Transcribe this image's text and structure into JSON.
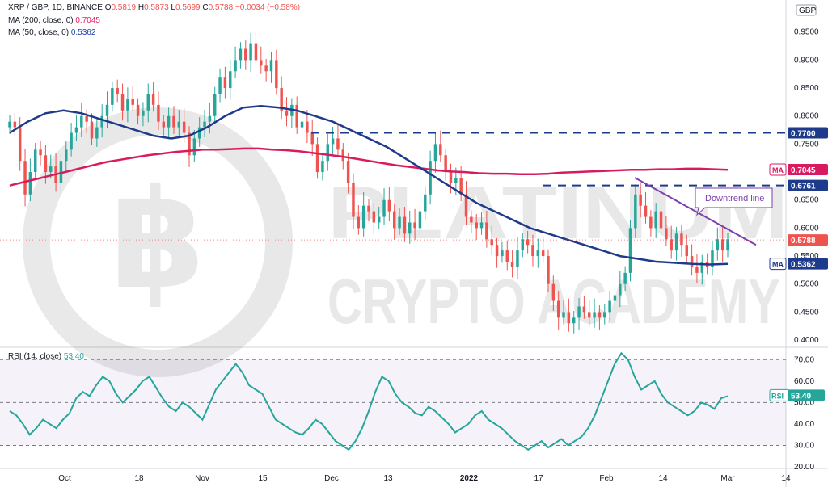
{
  "header": {
    "symbol": "XRP / GBP, 1D, BINANCE",
    "ohlc": [
      {
        "k": "O",
        "v": "0.5819"
      },
      {
        "k": "H",
        "v": "0.5873"
      },
      {
        "k": "L",
        "v": "0.5699"
      },
      {
        "k": "C",
        "v": "0.5788"
      }
    ],
    "change": "−0.0034 (−0.58%)",
    "ma200_label": "MA (200, close, 0)",
    "ma200_value": "0.7045",
    "ma50_label": "MA (50, close, 0)",
    "ma50_value": "0.5362",
    "rsi_label": "RSI (14, close)",
    "rsi_value": "53.40",
    "currency": "GBP"
  },
  "watermark": {
    "line1": "PLATINUM",
    "line2": "CRYPTO ACADEMY"
  },
  "colors": {
    "up": "#26a69a",
    "down": "#ef5350",
    "ma200": "#d81b60",
    "ma50": "#1e3a8a",
    "rsi": "#26a69a",
    "trend": "#7b3fb0",
    "hline": "#1e3a8a"
  },
  "annotations": {
    "downtrend_label": "Downtrend line",
    "levels": [
      {
        "value": 0.77,
        "label": "0.7700",
        "color": "#1e3a8a"
      },
      {
        "value": 0.6761,
        "label": "0.6761",
        "color": "#1e3a8a"
      }
    ],
    "tags": [
      {
        "value": 0.7045,
        "prefix": "MA",
        "label": "0.7045",
        "color": "#d81b60"
      },
      {
        "value": 0.5788,
        "prefix": "",
        "label": "0.5788",
        "color": "#ef5350"
      },
      {
        "value": 0.5362,
        "prefix": "MA",
        "label": "0.5362",
        "color": "#1e3a8a"
      }
    ],
    "rsi_tag": {
      "prefix": "RSI",
      "label": "53.40"
    }
  },
  "chart_data": {
    "type": "candlestick",
    "x_labels": [
      {
        "index": 0,
        "label": "Oct"
      },
      {
        "index": 1,
        "label": "18"
      },
      {
        "index": 2,
        "label": "Nov"
      },
      {
        "index": 3,
        "label": "15"
      },
      {
        "index": 4,
        "label": "Dec"
      },
      {
        "index": 5,
        "label": "13"
      },
      {
        "index": 6,
        "label": "2022"
      },
      {
        "index": 7,
        "label": "17"
      },
      {
        "index": 8,
        "label": "Feb"
      },
      {
        "index": 9,
        "label": "14"
      },
      {
        "index": 10,
        "label": "Mar"
      },
      {
        "index": 11,
        "label": "14"
      }
    ],
    "price_axis": {
      "min": 0.39,
      "max": 0.99,
      "ticks": [
        "0.9500",
        "0.9000",
        "0.8500",
        "0.8000",
        "0.7500",
        "0.6500",
        "0.6000",
        "0.5500",
        "0.5000",
        "0.4500",
        "0.4000"
      ]
    },
    "rsi_axis": {
      "min": 20,
      "max": 75,
      "ticks": [
        "70.00",
        "60.00",
        "50.00",
        "40.00",
        "30.00",
        "20.00"
      ],
      "upper": 70,
      "lower": 30
    },
    "close": [
      0.79,
      0.78,
      0.72,
      0.66,
      0.7,
      0.74,
      0.73,
      0.7,
      0.71,
      0.68,
      0.72,
      0.74,
      0.77,
      0.78,
      0.8,
      0.79,
      0.76,
      0.78,
      0.8,
      0.82,
      0.85,
      0.84,
      0.81,
      0.83,
      0.82,
      0.8,
      0.81,
      0.84,
      0.82,
      0.79,
      0.78,
      0.8,
      0.78,
      0.79,
      0.77,
      0.73,
      0.76,
      0.78,
      0.79,
      0.8,
      0.84,
      0.87,
      0.85,
      0.88,
      0.9,
      0.92,
      0.9,
      0.93,
      0.9,
      0.89,
      0.88,
      0.9,
      0.85,
      0.81,
      0.8,
      0.82,
      0.78,
      0.79,
      0.77,
      0.75,
      0.7,
      0.72,
      0.75,
      0.76,
      0.74,
      0.72,
      0.68,
      0.62,
      0.6,
      0.64,
      0.63,
      0.61,
      0.62,
      0.65,
      0.63,
      0.6,
      0.62,
      0.59,
      0.61,
      0.6,
      0.63,
      0.66,
      0.72,
      0.75,
      0.73,
      0.7,
      0.68,
      0.69,
      0.66,
      0.62,
      0.61,
      0.6,
      0.61,
      0.58,
      0.57,
      0.55,
      0.56,
      0.54,
      0.53,
      0.56,
      0.58,
      0.57,
      0.55,
      0.56,
      0.55,
      0.5,
      0.47,
      0.44,
      0.45,
      0.43,
      0.44,
      0.46,
      0.45,
      0.44,
      0.45,
      0.44,
      0.45,
      0.47,
      0.48,
      0.5,
      0.52,
      0.6,
      0.66,
      0.64,
      0.62,
      0.6,
      0.63,
      0.6,
      0.58,
      0.56,
      0.59,
      0.57,
      0.55,
      0.53,
      0.52,
      0.54,
      0.53,
      0.56,
      0.58,
      0.56,
      0.58
    ],
    "ma200": [
      0.676,
      0.682,
      0.688,
      0.694,
      0.7,
      0.706,
      0.712,
      0.718,
      0.722,
      0.726,
      0.73,
      0.733,
      0.736,
      0.738,
      0.74,
      0.74,
      0.741,
      0.742,
      0.742,
      0.74,
      0.739,
      0.737,
      0.734,
      0.731,
      0.728,
      0.724,
      0.72,
      0.716,
      0.712,
      0.709,
      0.706,
      0.703,
      0.701,
      0.7,
      0.698,
      0.697,
      0.697,
      0.696,
      0.696,
      0.697,
      0.699,
      0.7,
      0.701,
      0.702,
      0.703,
      0.704,
      0.704,
      0.705,
      0.705,
      0.706,
      0.706,
      0.705,
      0.704
    ],
    "ma50": [
      0.77,
      0.79,
      0.805,
      0.81,
      0.805,
      0.795,
      0.785,
      0.775,
      0.765,
      0.76,
      0.765,
      0.78,
      0.8,
      0.815,
      0.818,
      0.815,
      0.81,
      0.8,
      0.79,
      0.775,
      0.76,
      0.745,
      0.725,
      0.705,
      0.685,
      0.665,
      0.645,
      0.63,
      0.615,
      0.6,
      0.59,
      0.58,
      0.57,
      0.56,
      0.55,
      0.545,
      0.54,
      0.538,
      0.536,
      0.535,
      0.536
    ],
    "rsi": [
      46,
      44,
      40,
      35,
      38,
      42,
      40,
      38,
      42,
      45,
      52,
      55,
      53,
      58,
      62,
      60,
      54,
      50,
      53,
      56,
      60,
      62,
      57,
      52,
      48,
      46,
      50,
      48,
      45,
      42,
      49,
      56,
      60,
      64,
      68,
      64,
      58,
      56,
      54,
      48,
      42,
      40,
      38,
      36,
      35,
      38,
      42,
      40,
      36,
      32,
      30,
      28,
      32,
      38,
      46,
      55,
      62,
      60,
      54,
      50,
      48,
      45,
      44,
      48,
      46,
      43,
      40,
      36,
      38,
      40,
      44,
      46,
      42,
      40,
      38,
      35,
      32,
      30,
      28,
      30,
      32,
      29,
      31,
      33,
      30,
      32,
      34,
      38,
      44,
      52,
      60,
      68,
      73,
      70,
      62,
      56,
      58,
      60,
      54,
      50,
      48,
      46,
      44,
      46,
      50,
      49,
      47,
      52,
      53
    ]
  }
}
